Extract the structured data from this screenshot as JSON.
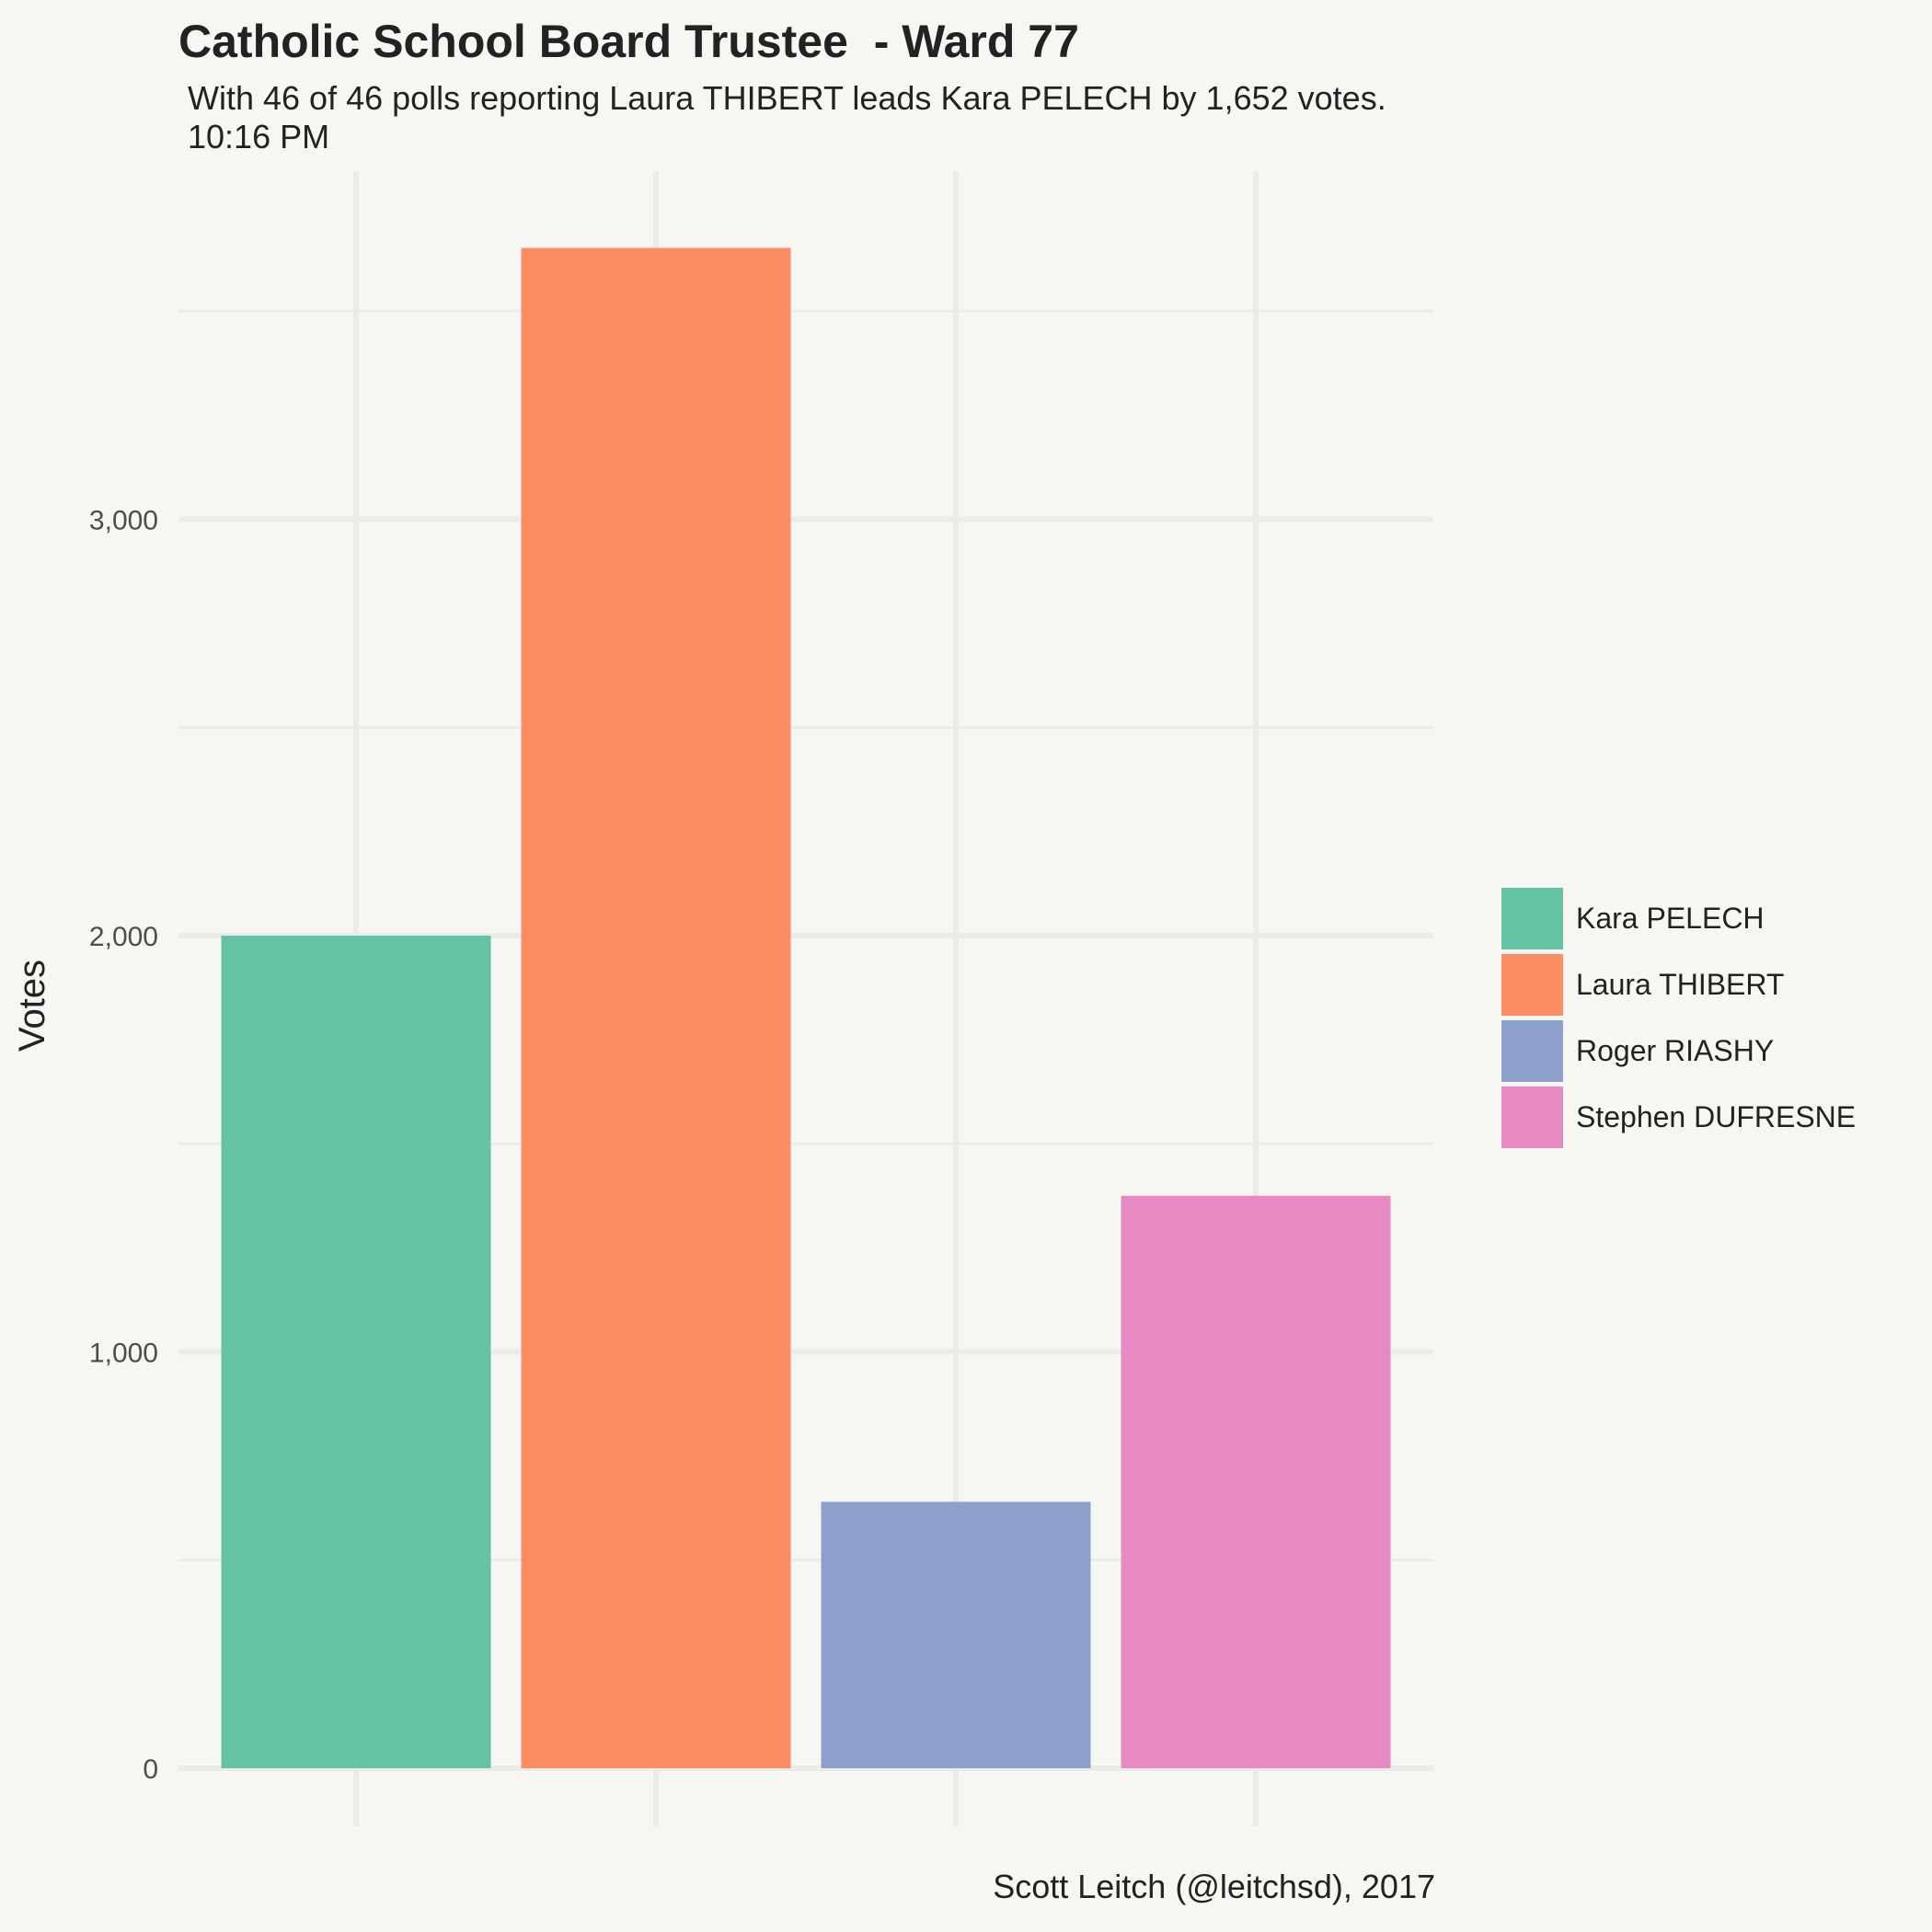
{
  "chart_data": {
    "type": "bar",
    "title": "Catholic School Board Trustee  - Ward 77",
    "subtitle": [
      "With 46 of 46 polls reporting Laura THIBERT leads Kara PELECH by 1,652 votes.",
      "10:16 PM"
    ],
    "caption": "Scott Leitch (@leitchsd), 2017",
    "xlabel": "",
    "ylabel": "Votes",
    "ylim": [
      0,
      4000
    ],
    "yticks": [
      0,
      1000,
      2000,
      3000
    ],
    "ytick_labels": [
      "0",
      "1,000",
      "2,000",
      "3,000"
    ],
    "grid": true,
    "legend_position": "right",
    "categories": [
      "Kara PELECH",
      "Laura THIBERT",
      "Roger RIASHY",
      "Stephen DUFRESNE"
    ],
    "values": [
      2000,
      3652,
      640,
      1375
    ],
    "colors": [
      "#66c2a5",
      "#fc8d62",
      "#8da0cb",
      "#e78ac3"
    ]
  }
}
